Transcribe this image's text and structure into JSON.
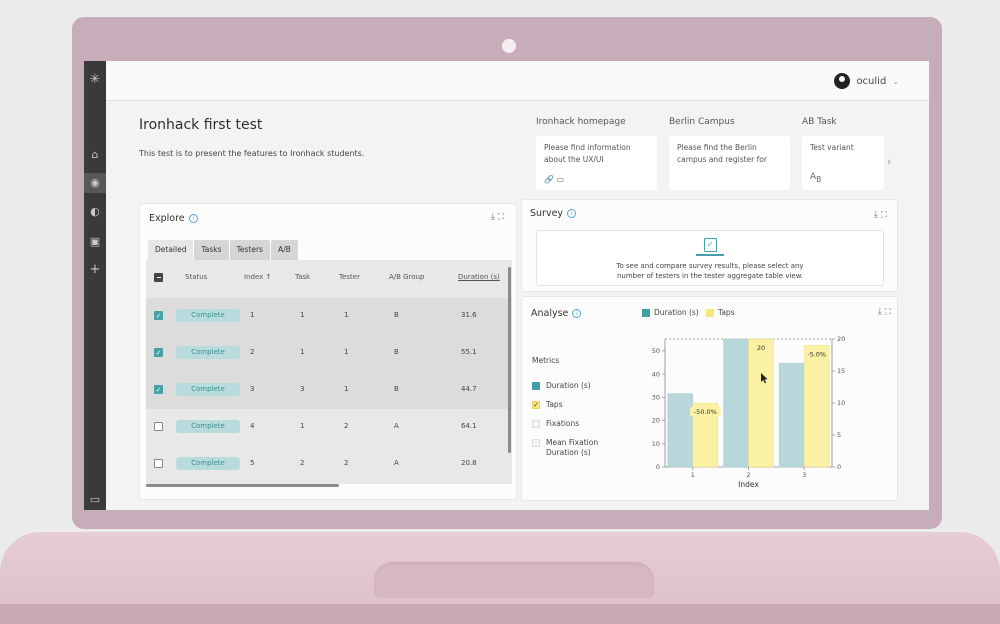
{
  "user": {
    "name": "oculid"
  },
  "test": {
    "title": "Ironhack first test",
    "description": "This test is to present the features to Ironhack students."
  },
  "tasks": [
    {
      "name": "Ironhack homepage",
      "text": "Please find information about the UX/UI"
    },
    {
      "name": "Berlin Campus",
      "text": "Please find the Berlin campus and register for"
    },
    {
      "name": "AB Task",
      "text": "Test variant"
    }
  ],
  "explore": {
    "title": "Explore",
    "tabs": [
      "Detailed",
      "Tasks",
      "Testers",
      "A/B"
    ],
    "columns": [
      "Status",
      "Index",
      "Task",
      "Tester",
      "A/B Group",
      "Duration (s)"
    ],
    "rows": [
      {
        "checked": true,
        "status": "Complete",
        "index": "1",
        "task": "1",
        "tester": "1",
        "group": "B",
        "duration": "31.6"
      },
      {
        "checked": true,
        "status": "Complete",
        "index": "2",
        "task": "1",
        "tester": "1",
        "group": "B",
        "duration": "55.1"
      },
      {
        "checked": true,
        "status": "Complete",
        "index": "3",
        "task": "3",
        "tester": "1",
        "group": "B",
        "duration": "44.7"
      },
      {
        "checked": false,
        "status": "Complete",
        "index": "4",
        "task": "1",
        "tester": "2",
        "group": "A",
        "duration": "64.1"
      },
      {
        "checked": false,
        "status": "Complete",
        "index": "5",
        "task": "2",
        "tester": "2",
        "group": "A",
        "duration": "20.8"
      }
    ]
  },
  "survey": {
    "title": "Survey",
    "message": "To see and compare survey results, please select any number of testers in the tester aggregate table view."
  },
  "analyse": {
    "title": "Analyse",
    "metrics_label": "Metrics",
    "metrics": [
      {
        "label": "Duration (s)",
        "checked": true,
        "color": "#3f9fa3"
      },
      {
        "label": "Taps",
        "checked": true,
        "color": "#f4e87a"
      },
      {
        "label": "Fixations",
        "checked": false
      },
      {
        "label": "Mean Fixation Duration (s)",
        "checked": false
      }
    ]
  },
  "colors": {
    "duration": "#b7d7da",
    "taps": "#fbf1a4",
    "accent": "#46a2a6"
  },
  "chart_data": {
    "type": "bar",
    "categories": [
      "1",
      "2",
      "3"
    ],
    "xlabel": "Index",
    "series": [
      {
        "name": "Duration (s)",
        "axis": "left",
        "values": [
          31.6,
          55.1,
          44.7
        ]
      },
      {
        "name": "Taps",
        "axis": "right",
        "values": [
          10,
          20,
          19
        ]
      }
    ],
    "left_ylim": [
      0,
      55.1
    ],
    "left_ticks": [
      "0",
      "10",
      "20",
      "30",
      "40",
      "50"
    ],
    "right_ylim": [
      0,
      20
    ],
    "right_ticks": [
      "0",
      "5",
      "10",
      "15",
      "20"
    ],
    "annotations": [
      "-50.0%",
      "20",
      "-5.0%"
    ]
  }
}
